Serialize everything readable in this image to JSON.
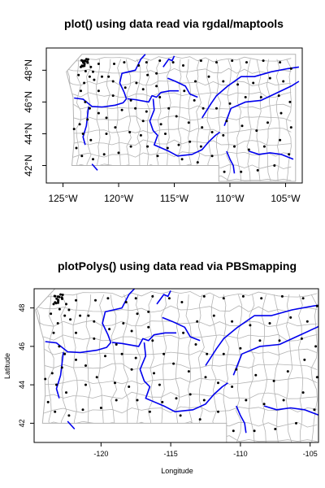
{
  "colors": {
    "background": "#ffffff",
    "boundary": "#b3b3b3",
    "river": "#0000ee",
    "point": "#000000",
    "frame": "#000000"
  },
  "chart_data": [
    {
      "type": "map",
      "title": "plot() using data read via rgdal/maptools",
      "xlabel": "",
      "ylabel": "",
      "xlim": [
        -126.5,
        -103.5
      ],
      "ylim": [
        40.9,
        49.4
      ],
      "x_ticks": [
        -125,
        -120,
        -115,
        -110,
        -105
      ],
      "x_tick_labels": [
        "125°W",
        "120°W",
        "115°W",
        "110°W",
        "105°W"
      ],
      "y_ticks": [
        42,
        44,
        46,
        48
      ],
      "y_tick_labels": [
        "42°N",
        "44°N",
        "46°N",
        "48°N"
      ],
      "box": true,
      "layers": [
        "county boundaries",
        "rivers",
        "county centroids"
      ]
    },
    {
      "type": "map",
      "title": "plotPolys() using data read via PBSmapping",
      "xlabel": "Longitude",
      "ylabel": "Latitude",
      "xlim": [
        -124.8,
        -104.4
      ],
      "ylim": [
        41.0,
        49.0
      ],
      "x_ticks": [
        -120,
        -115,
        -110,
        -105
      ],
      "x_tick_labels": [
        "-120",
        "-115",
        "-110",
        "-105"
      ],
      "y_ticks": [
        42,
        44,
        46,
        48
      ],
      "y_tick_labels": [
        "42",
        "44",
        "46",
        "48"
      ],
      "box": true,
      "layers": [
        "county boundaries",
        "rivers",
        "county centroids"
      ]
    }
  ],
  "map_data": {
    "rivers": [
      [
        [
          -124.0,
          46.25
        ],
        [
          -123.2,
          46.18
        ],
        [
          -122.4,
          45.72
        ],
        [
          -121.5,
          45.68
        ],
        [
          -120.3,
          45.8
        ],
        [
          -119.6,
          45.95
        ],
        [
          -119.3,
          46.2
        ],
        [
          -119.5,
          46.6
        ],
        [
          -119.9,
          47.2
        ],
        [
          -119.7,
          47.8
        ],
        [
          -118.5,
          48.0
        ],
        [
          -118.0,
          48.7
        ],
        [
          -117.6,
          49.0
        ]
      ],
      [
        [
          -122.7,
          45.7
        ],
        [
          -122.9,
          44.5
        ],
        [
          -123.2,
          43.8
        ],
        [
          -123.0,
          43.3
        ]
      ],
      [
        [
          -119.2,
          46.2
        ],
        [
          -118.5,
          46.15
        ],
        [
          -117.3,
          46.0
        ],
        [
          -117.0,
          46.4
        ],
        [
          -116.6,
          46.3
        ],
        [
          -116.2,
          46.6
        ],
        [
          -115.4,
          46.7
        ],
        [
          -114.6,
          46.7
        ]
      ],
      [
        [
          -116.9,
          46.2
        ],
        [
          -116.8,
          45.5
        ],
        [
          -117.2,
          44.8
        ],
        [
          -116.9,
          44.2
        ],
        [
          -116.5,
          43.9
        ],
        [
          -116.8,
          43.3
        ],
        [
          -115.5,
          42.9
        ],
        [
          -114.7,
          42.6
        ],
        [
          -113.4,
          42.7
        ],
        [
          -112.5,
          43.0
        ],
        [
          -111.9,
          43.5
        ],
        [
          -111.3,
          43.9
        ],
        [
          -110.9,
          44.1
        ]
      ],
      [
        [
          -116.0,
          48.2
        ],
        [
          -115.5,
          48.7
        ],
        [
          -115.2,
          48.6
        ],
        [
          -115.0,
          48.9
        ]
      ],
      [
        [
          -115.6,
          47.5
        ],
        [
          -114.9,
          47.3
        ],
        [
          -114.0,
          47.0
        ],
        [
          -113.6,
          46.5
        ],
        [
          -112.9,
          46.3
        ]
      ],
      [
        [
          -112.5,
          45.0
        ],
        [
          -111.7,
          45.9
        ],
        [
          -111.2,
          46.4
        ],
        [
          -110.2,
          47.0
        ],
        [
          -109.0,
          47.6
        ],
        [
          -107.8,
          47.6
        ],
        [
          -106.3,
          47.9
        ],
        [
          -104.8,
          48.1
        ],
        [
          -103.8,
          48.2
        ]
      ],
      [
        [
          -110.5,
          44.5
        ],
        [
          -109.9,
          45.6
        ],
        [
          -108.6,
          46.0
        ],
        [
          -107.2,
          46.1
        ],
        [
          -106.0,
          46.5
        ],
        [
          -104.5,
          47.0
        ],
        [
          -103.8,
          47.3
        ]
      ],
      [
        [
          -110.3,
          42.9
        ],
        [
          -110.0,
          42.4
        ],
        [
          -109.7,
          42.0
        ],
        [
          -109.6,
          41.5
        ]
      ],
      [
        [
          -108.3,
          42.9
        ],
        [
          -107.4,
          42.7
        ],
        [
          -106.4,
          42.8
        ],
        [
          -105.4,
          42.7
        ],
        [
          -104.3,
          42.4
        ]
      ],
      [
        [
          -122.4,
          42.1
        ],
        [
          -121.9,
          41.7
        ]
      ]
    ],
    "centroids": [
      [
        -123.6,
        47.7
      ],
      [
        -123.1,
        47.2
      ],
      [
        -122.6,
        47.6
      ],
      [
        -122.3,
        47.9
      ],
      [
        -121.8,
        48.4
      ],
      [
        -122.9,
        48.7
      ],
      [
        -123.4,
        48.2
      ],
      [
        -122.5,
        48.2
      ],
      [
        -122.2,
        47.4
      ],
      [
        -121.5,
        47.6
      ],
      [
        -120.5,
        47.3
      ],
      [
        -120.4,
        48.4
      ],
      [
        -119.5,
        48.5
      ],
      [
        -118.2,
        48.3
      ],
      [
        -117.5,
        48.5
      ],
      [
        -117.4,
        47.7
      ],
      [
        -118.4,
        47.2
      ],
      [
        -119.4,
        46.9
      ],
      [
        -120.5,
        46.4
      ],
      [
        -121.8,
        46.7
      ],
      [
        -123.4,
        46.7
      ],
      [
        -123.0,
        46.0
      ],
      [
        -122.6,
        45.6
      ],
      [
        -121.8,
        45.3
      ],
      [
        -122.8,
        44.9
      ],
      [
        -123.5,
        44.6
      ],
      [
        -123.2,
        44.0
      ],
      [
        -122.5,
        43.6
      ],
      [
        -123.8,
        43.1
      ],
      [
        -123.3,
        42.6
      ],
      [
        -122.3,
        42.4
      ],
      [
        -121.3,
        42.7
      ],
      [
        -120.0,
        42.8
      ],
      [
        -118.9,
        43.2
      ],
      [
        -119.0,
        44.1
      ],
      [
        -120.3,
        44.4
      ],
      [
        -121.1,
        45.0
      ],
      [
        -119.7,
        45.5
      ],
      [
        -118.5,
        45.6
      ],
      [
        -117.5,
        45.4
      ],
      [
        -117.8,
        44.8
      ],
      [
        -118.0,
        43.9
      ],
      [
        -117.4,
        43.2
      ],
      [
        -116.5,
        42.6
      ],
      [
        -115.6,
        43.1
      ],
      [
        -114.6,
        43.3
      ],
      [
        -113.6,
        43.5
      ],
      [
        -112.6,
        43.2
      ],
      [
        -111.6,
        42.6
      ],
      [
        -112.9,
        42.2
      ],
      [
        -114.3,
        42.4
      ],
      [
        -115.8,
        44.0
      ],
      [
        -116.2,
        44.6
      ],
      [
        -115.5,
        45.6
      ],
      [
        -116.3,
        46.3
      ],
      [
        -116.6,
        47.0
      ],
      [
        -116.6,
        47.8
      ],
      [
        -116.3,
        48.6
      ],
      [
        -115.1,
        48.5
      ],
      [
        -114.2,
        48.3
      ],
      [
        -112.6,
        48.6
      ],
      [
        -111.2,
        48.5
      ],
      [
        -109.8,
        48.6
      ],
      [
        -108.5,
        48.5
      ],
      [
        -107.0,
        48.6
      ],
      [
        -105.5,
        48.5
      ],
      [
        -104.5,
        48.1
      ],
      [
        -105.2,
        47.3
      ],
      [
        -106.4,
        47.5
      ],
      [
        -107.9,
        47.2
      ],
      [
        -109.3,
        47.1
      ],
      [
        -110.6,
        47.3
      ],
      [
        -111.9,
        47.6
      ],
      [
        -113.1,
        47.3
      ],
      [
        -114.1,
        46.7
      ],
      [
        -113.2,
        46.1
      ],
      [
        -112.4,
        45.6
      ],
      [
        -111.2,
        45.6
      ],
      [
        -110.0,
        45.9
      ],
      [
        -108.6,
        46.3
      ],
      [
        -107.2,
        46.3
      ],
      [
        -105.6,
        46.4
      ],
      [
        -104.6,
        46.0
      ],
      [
        -105.4,
        45.3
      ],
      [
        -106.6,
        44.7
      ],
      [
        -107.6,
        44.2
      ],
      [
        -108.9,
        44.5
      ],
      [
        -110.3,
        44.8
      ],
      [
        -110.6,
        43.9
      ],
      [
        -109.6,
        43.2
      ],
      [
        -108.3,
        43.0
      ],
      [
        -106.9,
        43.2
      ],
      [
        -105.5,
        43.6
      ],
      [
        -104.5,
        44.4
      ],
      [
        -104.7,
        42.7
      ],
      [
        -106.0,
        42.0
      ],
      [
        -107.5,
        41.7
      ],
      [
        -109.0,
        41.6
      ],
      [
        -110.5,
        41.6
      ],
      [
        -111.6,
        44.1
      ],
      [
        -112.5,
        44.4
      ],
      [
        -113.7,
        44.7
      ],
      [
        -114.8,
        45.1
      ],
      [
        -117.8,
        46.8
      ],
      [
        -118.9,
        46.1
      ],
      [
        -120.9,
        47.6
      ],
      [
        -121.1,
        44.0
      ],
      [
        -124.0,
        44.3
      ]
    ]
  }
}
